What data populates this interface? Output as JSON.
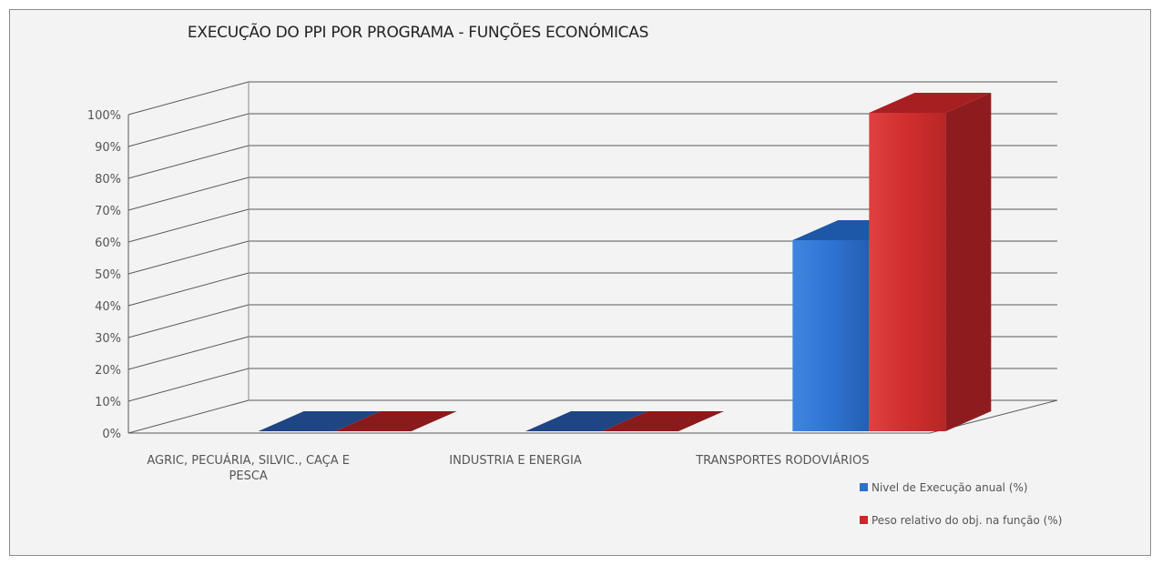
{
  "chart_data": {
    "type": "bar",
    "title": "EXECUÇÃO DO PPI POR PROGRAMA - FUNÇÕES ECONÓMICAS",
    "categories": [
      [
        "AGRIC, PECUÁRIA, SILVIC., CAÇA E",
        "PESCA"
      ],
      [
        "INDUSTRIA E ENERGIA"
      ],
      [
        "TRANSPORTES RODOVIÁRIOS"
      ]
    ],
    "series": [
      {
        "name": "Nivel de Execução anual (%)",
        "values": [
          0,
          0,
          60
        ],
        "color": "#2f6fcf"
      },
      {
        "name": "Peso relativo do obj. na função (%)",
        "values": [
          0,
          0,
          100
        ],
        "color": "#c8282a"
      }
    ],
    "yticks": [
      "0%",
      "10%",
      "20%",
      "30%",
      "40%",
      "50%",
      "60%",
      "70%",
      "80%",
      "90%",
      "100%"
    ],
    "ylim": [
      0,
      100
    ],
    "grid": true,
    "legend_position": "bottom-right"
  }
}
